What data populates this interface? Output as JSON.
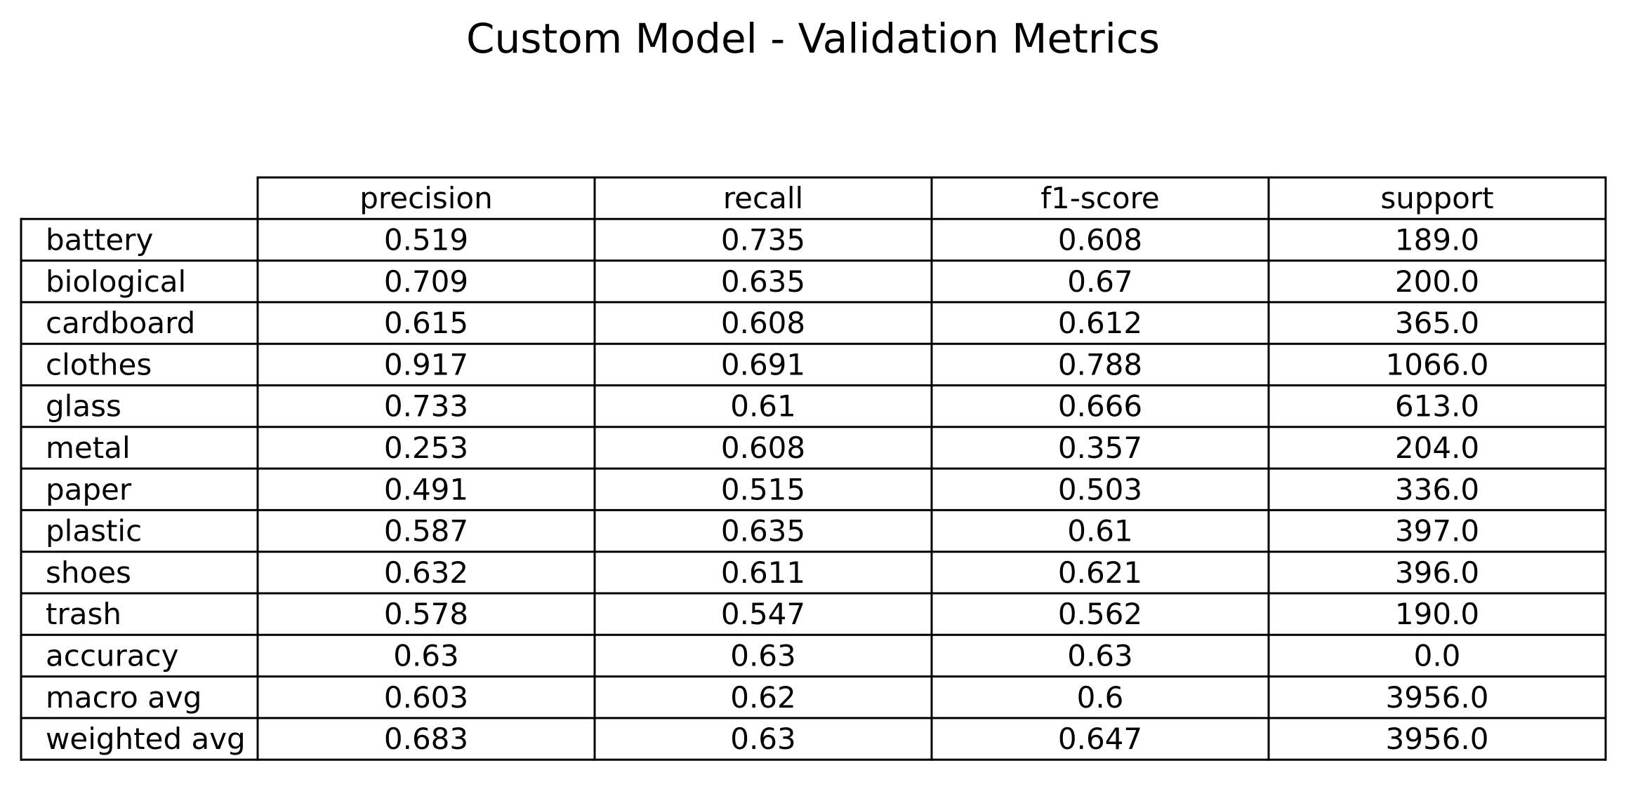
{
  "chart_data": {
    "type": "table",
    "title": "Custom Model - Validation Metrics",
    "columns": [
      "precision",
      "recall",
      "f1-score",
      "support"
    ],
    "rows": [
      {
        "label": "battery",
        "values": [
          "0.519",
          "0.735",
          "0.608",
          "189.0"
        ]
      },
      {
        "label": "biological",
        "values": [
          "0.709",
          "0.635",
          "0.67",
          "200.0"
        ]
      },
      {
        "label": "cardboard",
        "values": [
          "0.615",
          "0.608",
          "0.612",
          "365.0"
        ]
      },
      {
        "label": "clothes",
        "values": [
          "0.917",
          "0.691",
          "0.788",
          "1066.0"
        ]
      },
      {
        "label": "glass",
        "values": [
          "0.733",
          "0.61",
          "0.666",
          "613.0"
        ]
      },
      {
        "label": "metal",
        "values": [
          "0.253",
          "0.608",
          "0.357",
          "204.0"
        ]
      },
      {
        "label": "paper",
        "values": [
          "0.491",
          "0.515",
          "0.503",
          "336.0"
        ]
      },
      {
        "label": "plastic",
        "values": [
          "0.587",
          "0.635",
          "0.61",
          "397.0"
        ]
      },
      {
        "label": "shoes",
        "values": [
          "0.632",
          "0.611",
          "0.621",
          "396.0"
        ]
      },
      {
        "label": "trash",
        "values": [
          "0.578",
          "0.547",
          "0.562",
          "190.0"
        ]
      },
      {
        "label": "accuracy",
        "values": [
          "0.63",
          "0.63",
          "0.63",
          "0.0"
        ]
      },
      {
        "label": "macro avg",
        "values": [
          "0.603",
          "0.62",
          "0.6",
          "3956.0"
        ]
      },
      {
        "label": "weighted avg",
        "values": [
          "0.683",
          "0.63",
          "0.647",
          "3956.0"
        ]
      }
    ]
  }
}
